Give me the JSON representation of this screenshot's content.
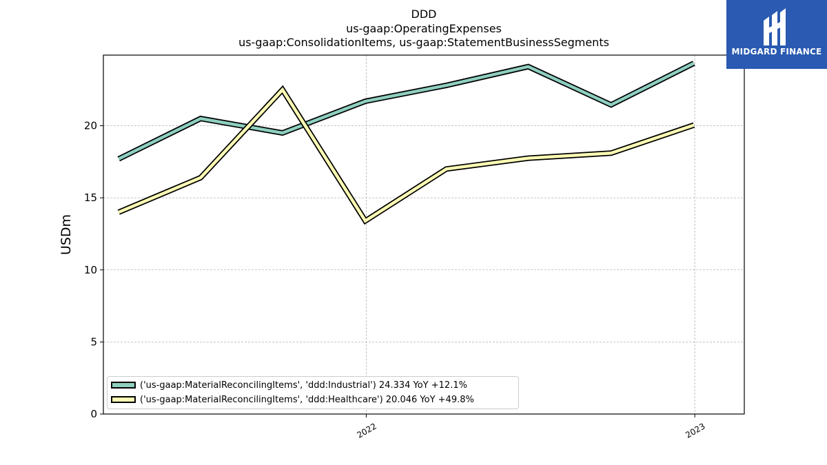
{
  "chart_data": {
    "type": "line",
    "title_lines": [
      "DDD",
      "us-gaap:OperatingExpenses",
      "us-gaap:ConsolidationItems, us-gaap:StatementBusinessSegments"
    ],
    "ylabel": "USDm",
    "xlabel": "",
    "ylim": [
      0,
      24.9
    ],
    "yticks": [
      0,
      5,
      10,
      15,
      20
    ],
    "xlim": [
      "2021-03-15",
      "2023-02-25"
    ],
    "xticks": [
      {
        "date": "2022-01-01",
        "label": "2022"
      },
      {
        "date": "2023-01-01",
        "label": "2023"
      }
    ],
    "grid": true,
    "legend_position": "lower-left",
    "x": [
      "2021-04-01",
      "2021-07-01",
      "2021-09-30",
      "2021-12-31",
      "2022-03-31",
      "2022-06-30",
      "2022-09-30",
      "2022-12-31"
    ],
    "series": [
      {
        "name": "('us-gaap:MaterialReconcilingItems', 'ddd:Industrial') 24.334 YoY +12.1%",
        "color": "#8ecfc0",
        "values": [
          17.7,
          20.5,
          19.5,
          21.7,
          22.8,
          24.1,
          21.45,
          24.334
        ]
      },
      {
        "name": "('us-gaap:MaterialReconcilingItems', 'ddd:Healthcare') 20.046 YoY +49.8%",
        "color": "#fdfdb5",
        "values": [
          14.0,
          16.4,
          22.5,
          13.4,
          17.0,
          17.75,
          18.1,
          20.046
        ]
      }
    ]
  },
  "logo": {
    "text": "MIDGARD FINANCE",
    "color": "#2a5ab1"
  }
}
